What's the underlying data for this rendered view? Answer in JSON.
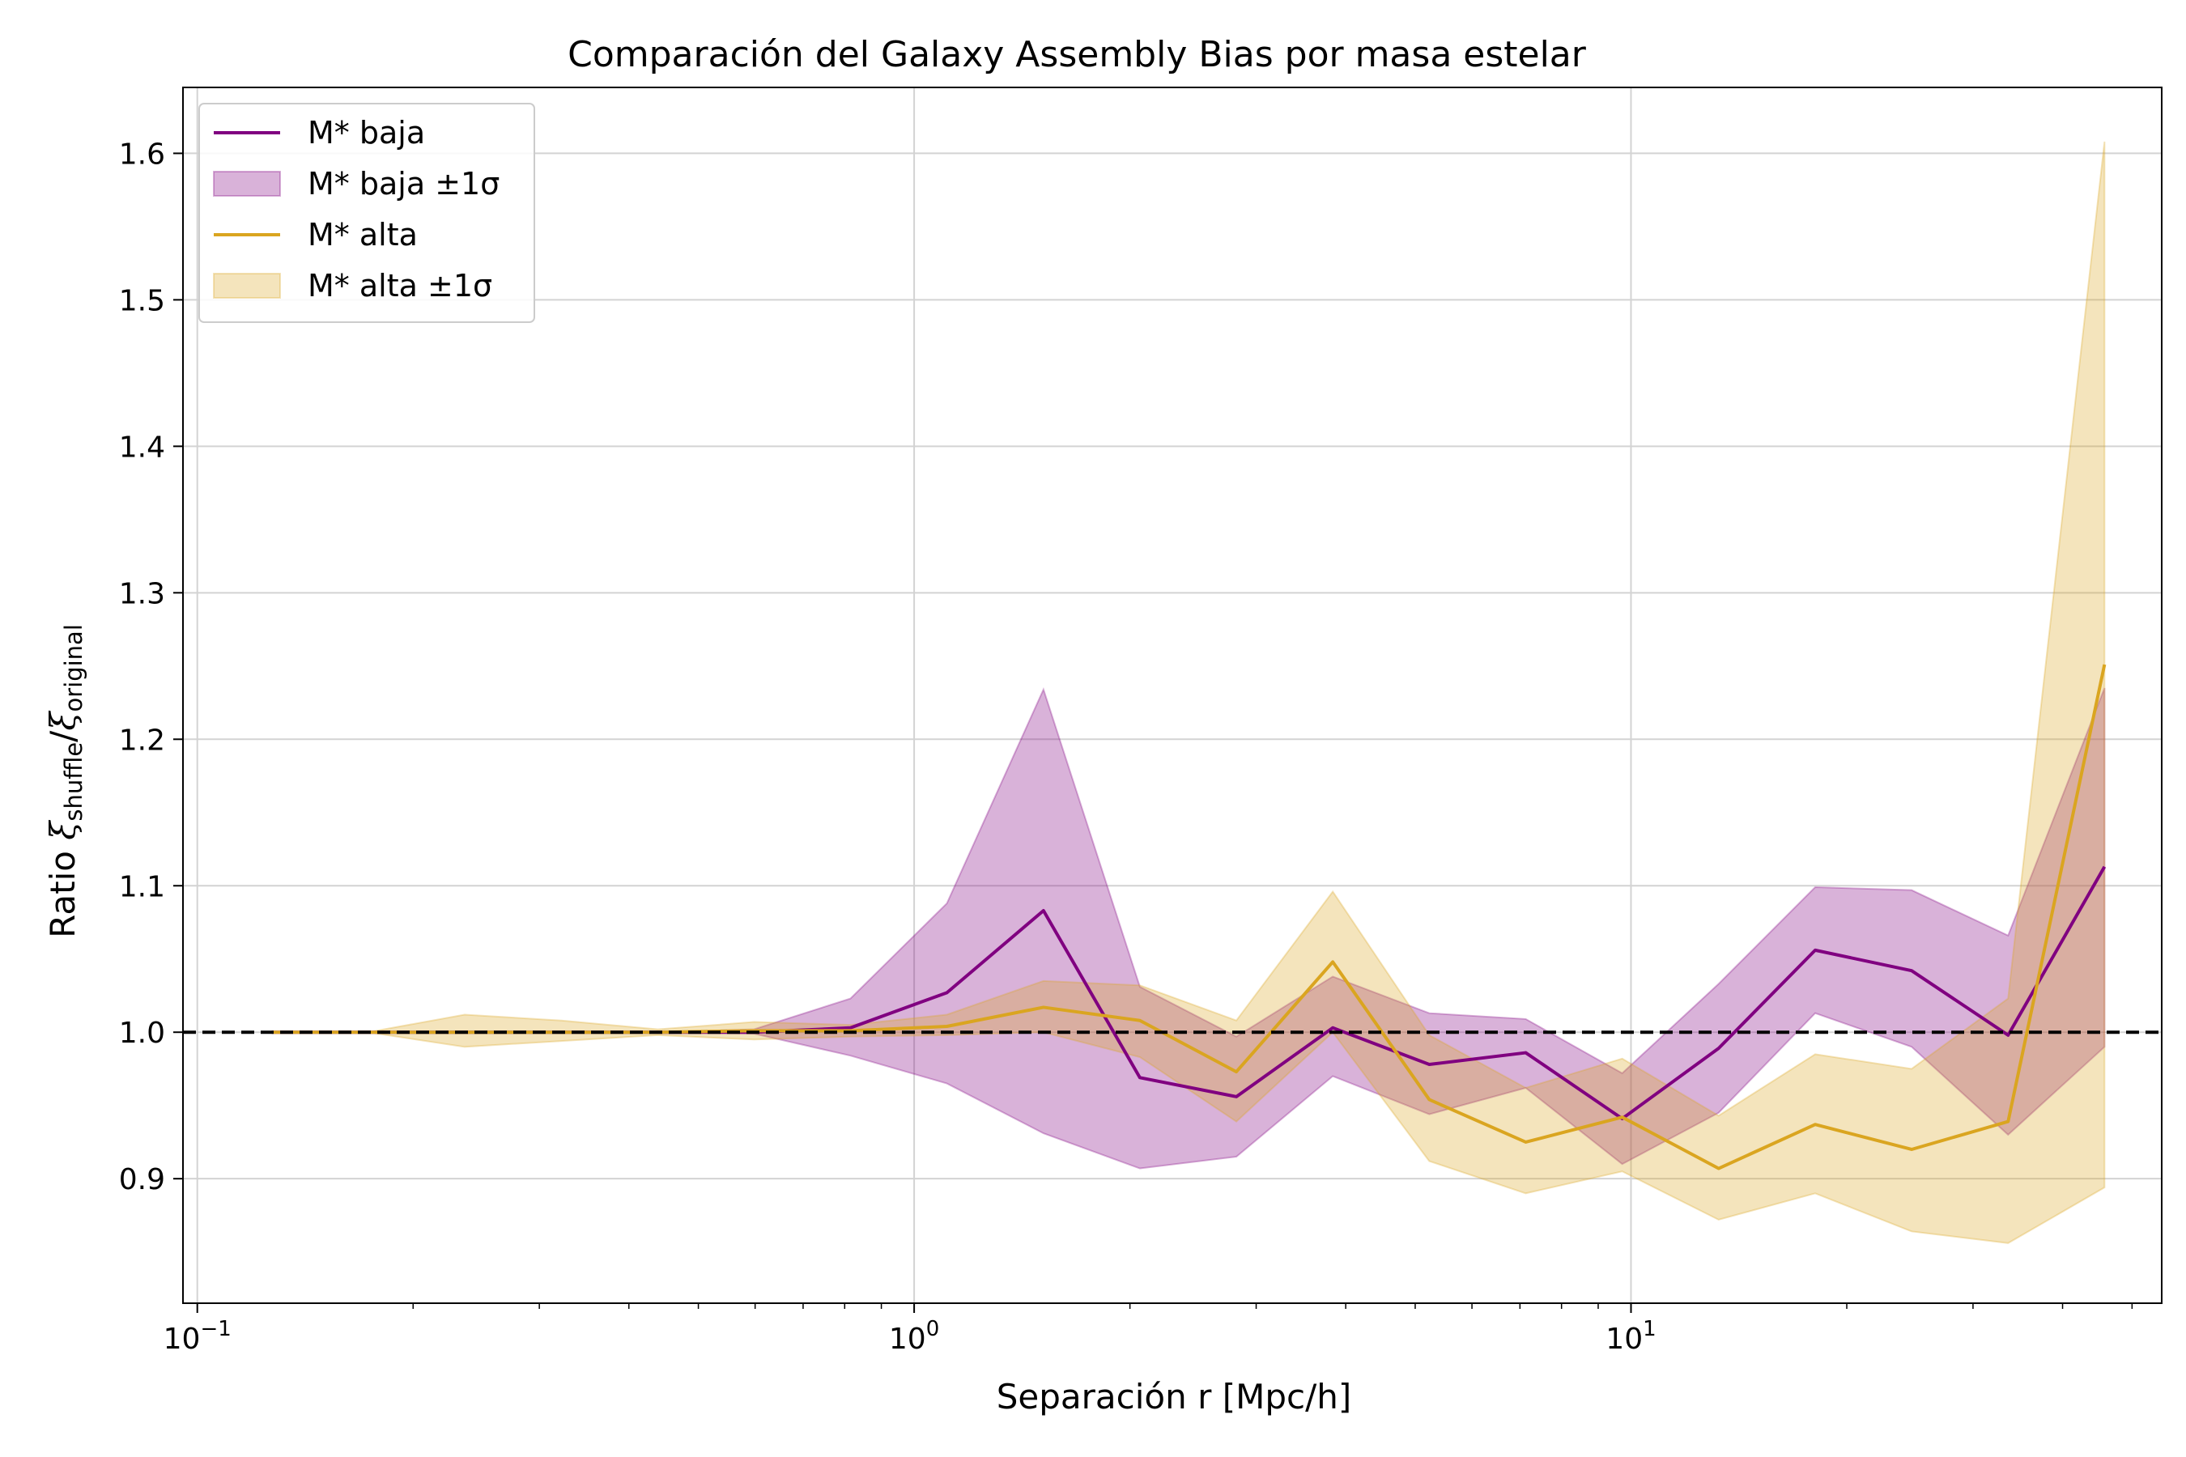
{
  "chart_data": {
    "type": "line",
    "title": "Comparación del Galaxy Assembly Bias por masa estelar",
    "xlabel": "Separación r [Mpc/h]",
    "ylabel": {
      "prefix": "Ratio ",
      "num_symbol": "ξ",
      "num_sub": "shuffle",
      "slash": "/",
      "den_symbol": "ξ",
      "den_sub": "original"
    },
    "x_scale": "log",
    "xlim": [
      0.0955,
      55
    ],
    "ylim": [
      0.815,
      1.645
    ],
    "grid": true,
    "x_major_ticks": [
      {
        "value": 0.1,
        "base": "10",
        "exp": "−1"
      },
      {
        "value": 1,
        "base": "10",
        "exp": "0"
      },
      {
        "value": 10,
        "base": "10",
        "exp": "1"
      }
    ],
    "y_ticks": [
      {
        "value": 0.9,
        "label": "0.9"
      },
      {
        "value": 1.0,
        "label": "1.0"
      },
      {
        "value": 1.1,
        "label": "1.1"
      },
      {
        "value": 1.2,
        "label": "1.2"
      },
      {
        "value": 1.3,
        "label": "1.3"
      },
      {
        "value": 1.4,
        "label": "1.4"
      },
      {
        "value": 1.5,
        "label": "1.5"
      },
      {
        "value": 1.6,
        "label": "1.6"
      }
    ],
    "reference_line": {
      "y": 1.0,
      "color": "#000000",
      "style": "dashed"
    },
    "legend": {
      "placement": "upper-left",
      "entries": [
        {
          "label": "M* baja",
          "kind": "line",
          "color": "#800080"
        },
        {
          "label": "M* baja ±1σ",
          "kind": "band",
          "color": "#800080"
        },
        {
          "label": "M* alta",
          "kind": "line",
          "color": "#DAA520"
        },
        {
          "label": "M* alta ±1σ",
          "kind": "band",
          "color": "#DAA520"
        }
      ]
    },
    "x": [
      0.127,
      0.173,
      0.236,
      0.322,
      0.439,
      0.598,
      0.815,
      1.111,
      1.515,
      2.065,
      2.815,
      3.837,
      5.231,
      7.131,
      9.722,
      13.25,
      18.07,
      24.63,
      33.58,
      45.77
    ],
    "series": [
      {
        "name": "M* baja",
        "color": "#800080",
        "values": [
          1.0,
          1.0,
          1.0,
          1.0,
          1.0,
          1.0,
          1.003,
          1.027,
          1.083,
          0.969,
          0.956,
          1.003,
          0.978,
          0.986,
          0.941,
          0.989,
          1.056,
          1.042,
          0.998,
          1.113
        ],
        "band_low": [
          1.0,
          1.0,
          1.0,
          1.0,
          1.0,
          0.999,
          0.984,
          0.965,
          0.931,
          0.907,
          0.915,
          0.97,
          0.944,
          0.962,
          0.91,
          0.945,
          1.013,
          0.99,
          0.93,
          0.99
        ],
        "band_high": [
          1.0,
          1.0,
          1.0,
          1.0,
          1.0,
          1.002,
          1.023,
          1.088,
          1.234,
          1.031,
          0.997,
          1.038,
          1.013,
          1.009,
          0.972,
          1.033,
          1.099,
          1.097,
          1.066,
          1.235
        ]
      },
      {
        "name": "M* alta",
        "color": "#DAA520",
        "values": [
          1.0,
          1.0,
          1.0,
          1.0,
          1.0,
          1.001,
          1.001,
          1.004,
          1.017,
          1.008,
          0.973,
          1.048,
          0.954,
          0.925,
          0.942,
          0.907,
          0.937,
          0.92,
          0.939,
          1.251
        ],
        "band_low": [
          1.0,
          1.0,
          0.99,
          0.994,
          0.998,
          0.995,
          0.997,
          0.998,
          1.0,
          0.983,
          0.939,
          1.0,
          0.912,
          0.89,
          0.905,
          0.872,
          0.89,
          0.864,
          0.856,
          0.894
        ],
        "band_high": [
          1.0,
          1.0,
          1.012,
          1.008,
          1.002,
          1.007,
          1.005,
          1.012,
          1.035,
          1.032,
          1.008,
          1.096,
          0.998,
          0.962,
          0.982,
          0.943,
          0.985,
          0.975,
          1.023,
          1.608
        ]
      }
    ]
  }
}
